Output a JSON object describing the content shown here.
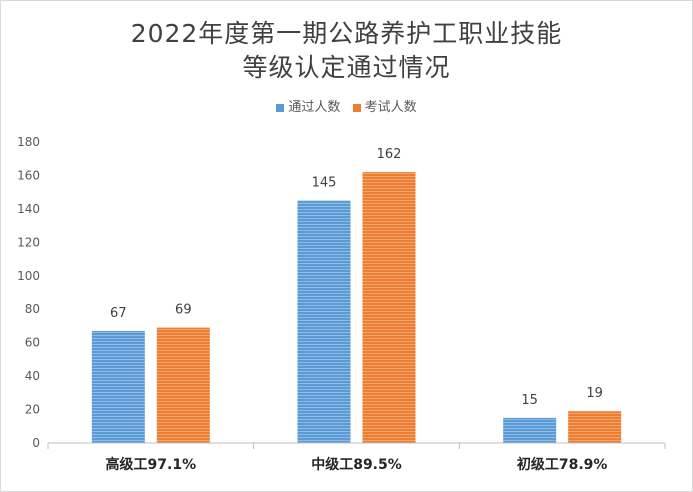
{
  "chart_data": {
    "type": "bar",
    "title_line1": "2022年度第一期公路养护工职业技能",
    "title_line2": "等级认定通过情况",
    "categories": [
      "高级工97.1%",
      "中级工89.5%",
      "初级工78.9%"
    ],
    "series": [
      {
        "name": "通过人数",
        "values": [
          67,
          145,
          15
        ],
        "color": "#5b9bd5"
      },
      {
        "name": "考试人数",
        "values": [
          69,
          162,
          19
        ],
        "color": "#ed7d31"
      }
    ],
    "ylim": [
      0,
      180
    ],
    "yticks": [
      0,
      20,
      40,
      60,
      80,
      100,
      120,
      140,
      160,
      180
    ],
    "legend_position": "top",
    "grid": false
  }
}
